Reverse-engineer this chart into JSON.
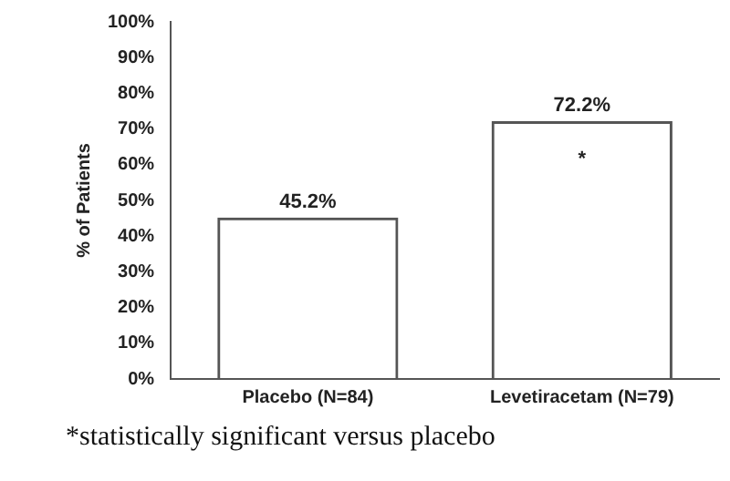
{
  "chart_data": {
    "type": "bar",
    "ylabel": "% of Patients",
    "categories": [
      "Placebo (N=84)",
      "Levetiracetam (N=79)"
    ],
    "values": [
      45.2,
      72.2
    ],
    "color": "#555555",
    "value_labels": [
      "45.2%",
      "72.2%"
    ],
    "ylim": [
      0,
      100
    ],
    "yticks": [
      {
        "value": 0,
        "label": "0%"
      },
      {
        "value": 10,
        "label": "10%"
      },
      {
        "value": 20,
        "label": "20%"
      },
      {
        "value": 30,
        "label": "30%"
      },
      {
        "value": 40,
        "label": "40%"
      },
      {
        "value": 50,
        "label": "50%"
      },
      {
        "value": 60,
        "label": "60%"
      },
      {
        "value": 70,
        "label": "70%"
      },
      {
        "value": 80,
        "label": "80%"
      },
      {
        "value": 90,
        "label": "90%"
      },
      {
        "value": 100,
        "label": "100%"
      }
    ],
    "grid": false,
    "legend": false,
    "annotations": [
      "*",
      "*statistically significant versus placebo"
    ]
  }
}
